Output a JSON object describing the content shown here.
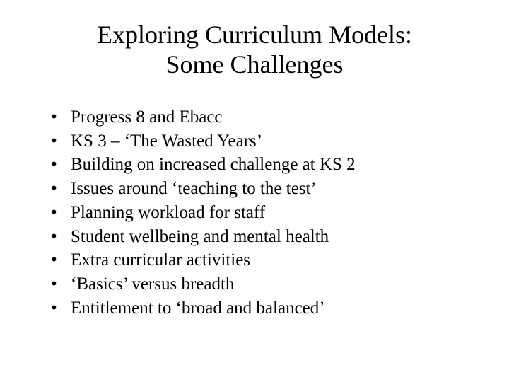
{
  "title_line1": "Exploring Curriculum Models:",
  "title_line2": "Some Challenges",
  "bullets": [
    "Progress 8 and Ebacc",
    "KS 3 – ‘The Wasted Years’",
    "Building on increased challenge at KS 2",
    "Issues around ‘teaching to the test’",
    "Planning workload for staff",
    "Student wellbeing and mental health",
    "Extra curricular activities",
    "‘Basics’ versus breadth",
    "Entitlement to ‘broad and balanced’"
  ]
}
